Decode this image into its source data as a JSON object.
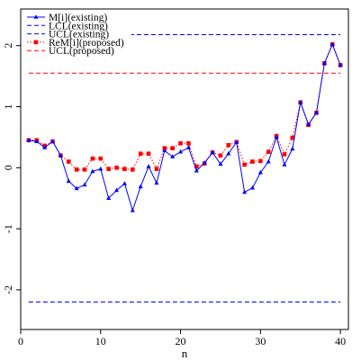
{
  "chart_data": {
    "type": "line",
    "xlabel": "n",
    "ylabel": "",
    "xlim": [
      0,
      41
    ],
    "ylim": [
      -2.65,
      2.6
    ],
    "x_ticks": [
      0,
      10,
      20,
      30,
      40
    ],
    "y_ticks": [
      -2,
      -1,
      0,
      1,
      2
    ],
    "grid": false,
    "legend_position": "top-left",
    "x": [
      1,
      2,
      3,
      4,
      5,
      6,
      7,
      8,
      9,
      10,
      11,
      12,
      13,
      14,
      15,
      16,
      17,
      18,
      19,
      20,
      21,
      22,
      23,
      24,
      25,
      26,
      27,
      28,
      29,
      30,
      31,
      32,
      33,
      34,
      35,
      36,
      37,
      38,
      39,
      40
    ],
    "series": [
      {
        "name": "M[i](existing)",
        "color": "#0000ff",
        "marker": "triangle",
        "line_style": "solid",
        "values": [
          0.45,
          0.43,
          0.33,
          0.43,
          0.2,
          -0.22,
          -0.34,
          -0.28,
          -0.06,
          -0.02,
          -0.5,
          -0.37,
          -0.26,
          -0.7,
          -0.31,
          0.02,
          -0.25,
          0.28,
          0.18,
          0.26,
          0.33,
          -0.05,
          0.08,
          0.25,
          0.06,
          0.23,
          0.42,
          -0.4,
          -0.33,
          -0.08,
          0.1,
          0.5,
          0.05,
          0.31,
          1.07,
          0.71,
          0.9,
          1.71,
          2.02,
          1.68
        ]
      },
      {
        "name": "ReM[i](proposed)",
        "color": "#ff0000",
        "marker": "square",
        "line_style": "dotted",
        "values": [
          0.45,
          0.45,
          0.36,
          0.43,
          0.2,
          0.1,
          -0.03,
          -0.03,
          0.15,
          0.15,
          -0.02,
          0.0,
          -0.02,
          -0.03,
          0.23,
          0.23,
          -0.02,
          0.32,
          0.32,
          0.4,
          0.4,
          0.02,
          0.07,
          0.25,
          0.2,
          0.37,
          0.42,
          0.05,
          0.1,
          0.11,
          0.26,
          0.52,
          0.22,
          0.49,
          1.07,
          0.7,
          0.9,
          1.71,
          2.02,
          1.68
        ]
      }
    ],
    "reference_lines": [
      {
        "name": "LCL(existing)",
        "y": -2.2,
        "color": "#0000ff",
        "line_style": "dashed"
      },
      {
        "name": "UCL(existing)",
        "y": 2.18,
        "color": "#0000ff",
        "line_style": "dashed"
      },
      {
        "name": "UCL(proposed)",
        "y": 1.55,
        "color": "#ff0000",
        "line_style": "dashed"
      }
    ],
    "legend": [
      {
        "label": "M[i](existing)",
        "color": "#0000ff",
        "line_style": "solid",
        "marker": "triangle"
      },
      {
        "label": "LCL(existing)",
        "color": "#0000ff",
        "line_style": "dashed",
        "marker": "none"
      },
      {
        "label": "UCL(existing)",
        "color": "#0000ff",
        "line_style": "dashed",
        "marker": "none"
      },
      {
        "label": "ReM[i](proposed)",
        "color": "#ff0000",
        "line_style": "dotted",
        "marker": "square"
      },
      {
        "label": "UCL(proposed)",
        "color": "#ff0000",
        "line_style": "dashed",
        "marker": "none"
      }
    ]
  }
}
